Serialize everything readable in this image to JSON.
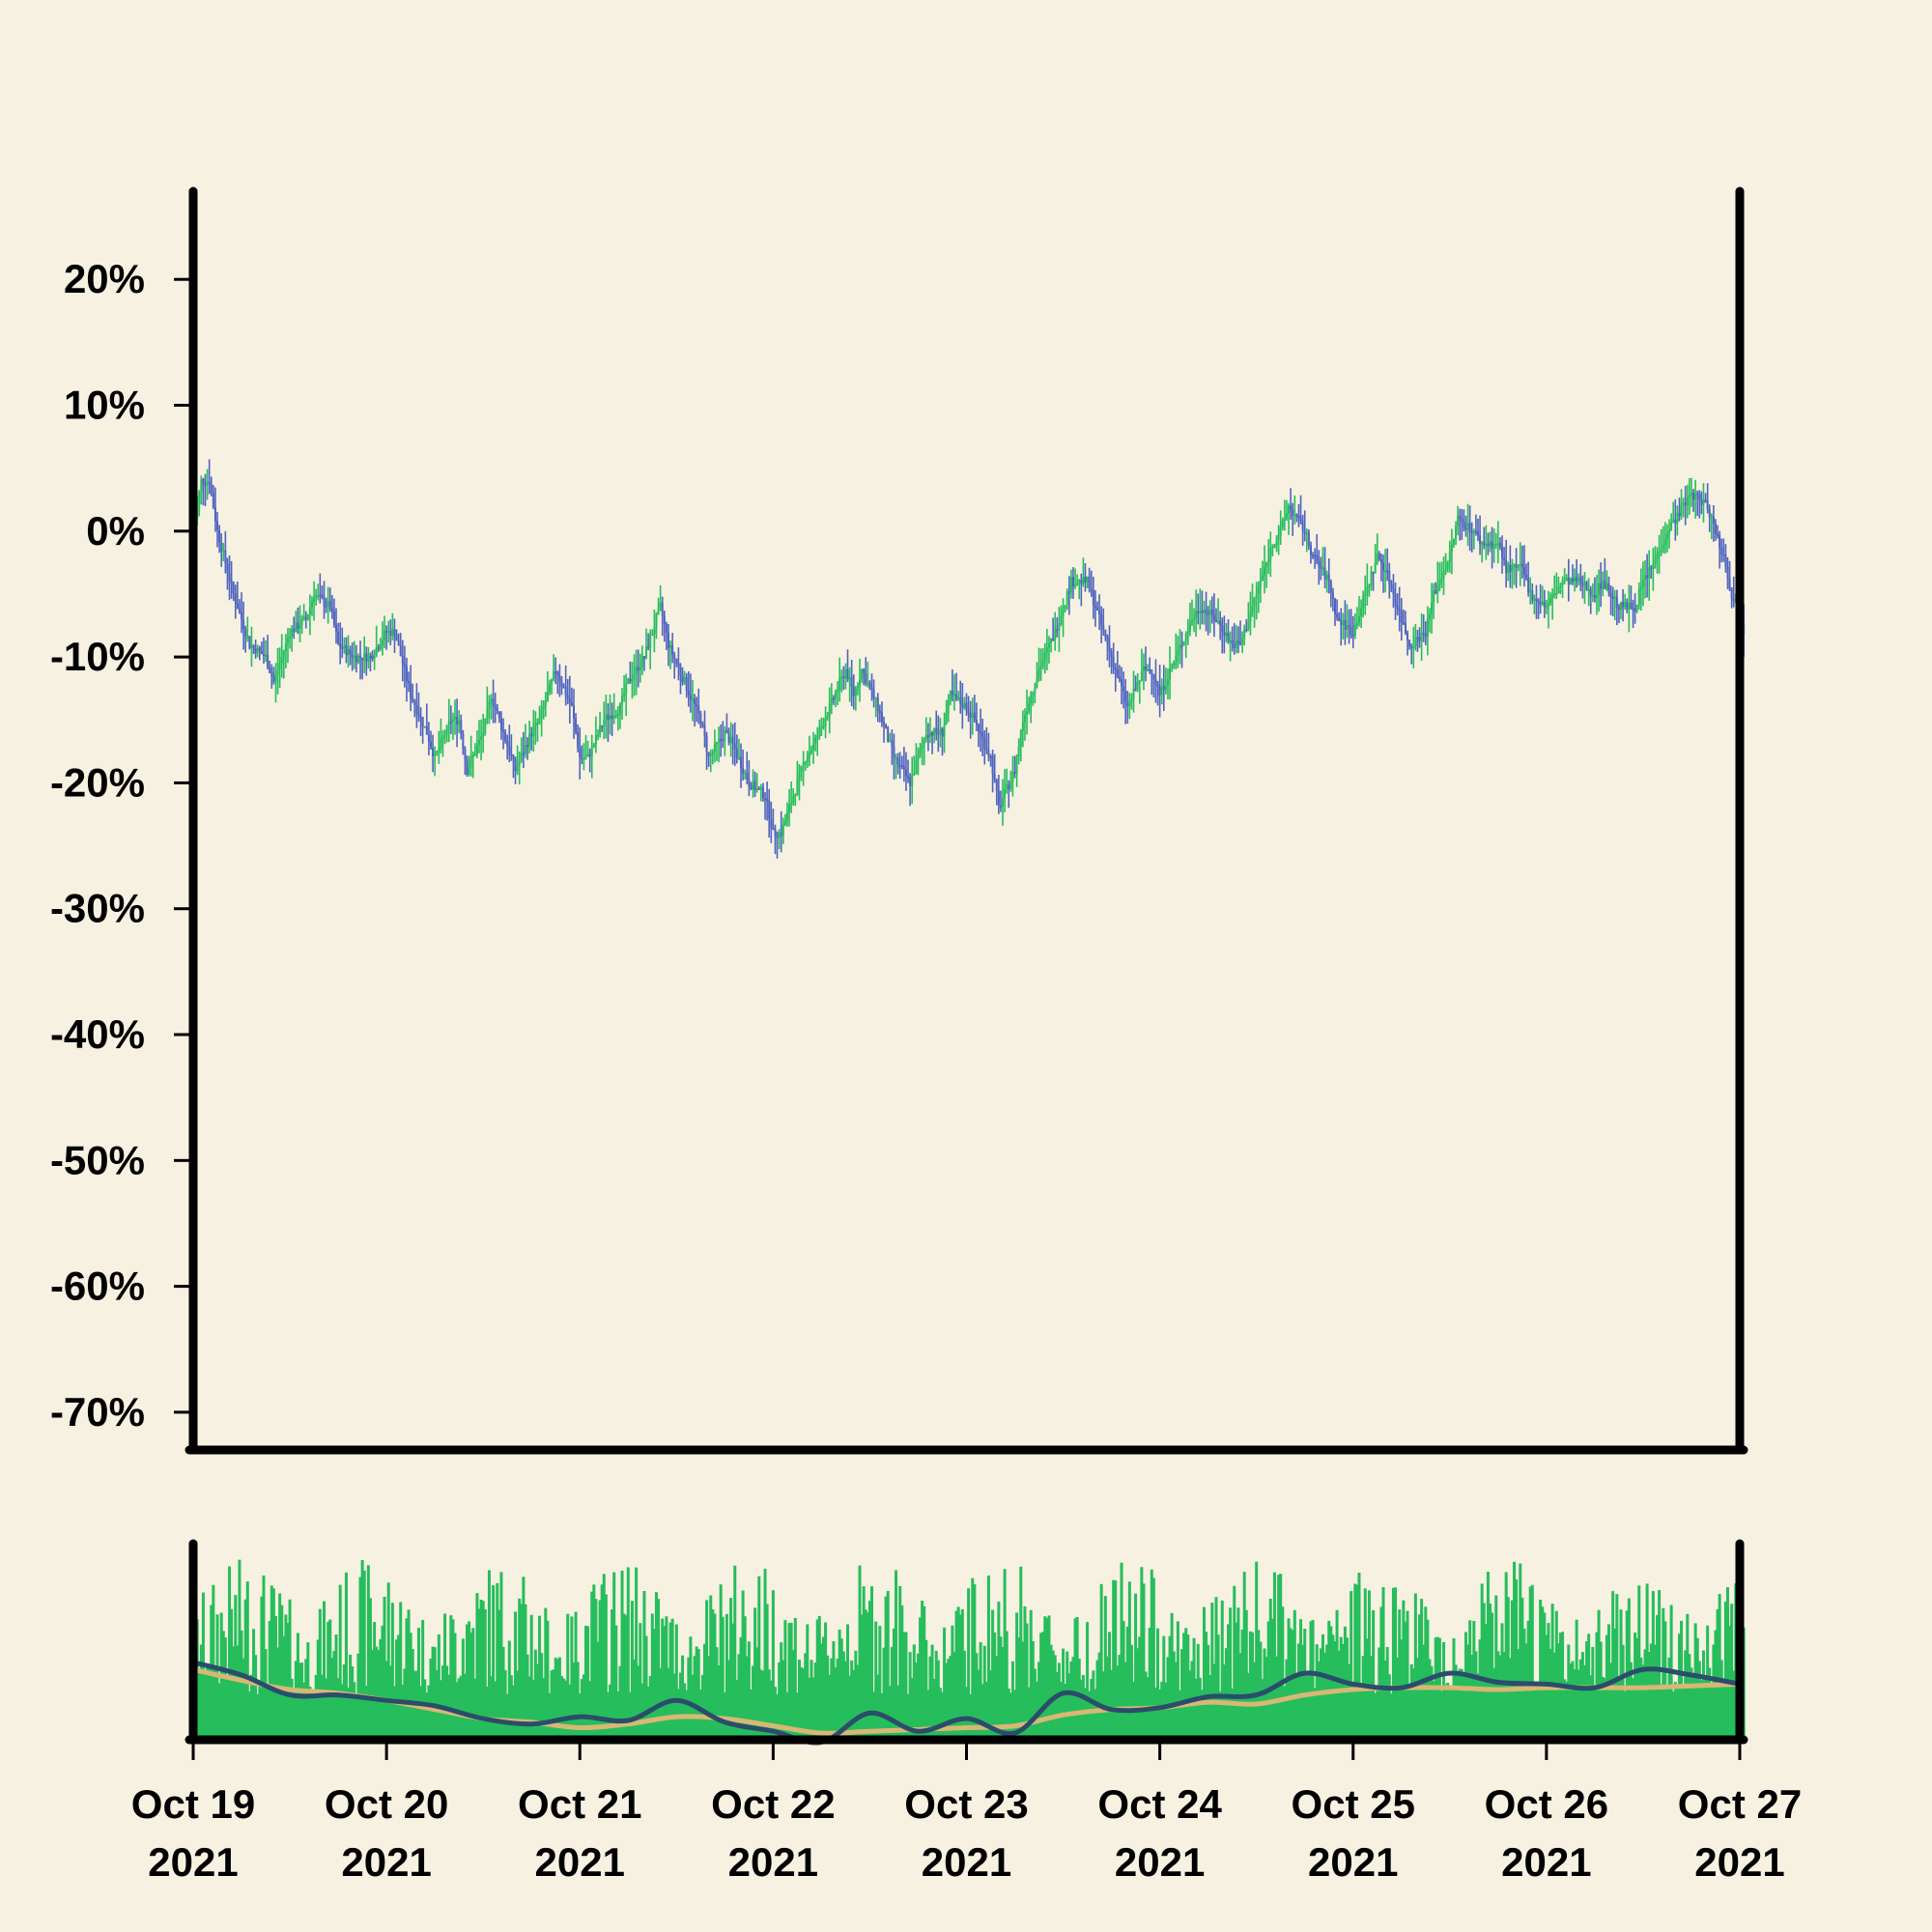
{
  "colors": {
    "background": "#f6f1e1",
    "up": "#26bd5c",
    "down": "#4f63bf",
    "volume": "#26bd5c",
    "ma_fast": "#2b4d6b",
    "ma_slow": "#d9b774",
    "axis": "#000000"
  },
  "chart_data": [
    {
      "type": "candlestick",
      "title": "",
      "xlabel": "",
      "ylabel": "",
      "ylim": [
        -73,
        27
      ],
      "y_unit": "%",
      "y_ticks": [
        {
          "value": 20,
          "label": "20%"
        },
        {
          "value": 10,
          "label": "10%"
        },
        {
          "value": 0,
          "label": "0%"
        },
        {
          "value": -10,
          "label": "-10%"
        },
        {
          "value": -20,
          "label": "-20%"
        },
        {
          "value": -30,
          "label": "-30%"
        },
        {
          "value": -40,
          "label": "-40%"
        },
        {
          "value": -50,
          "label": "-50%"
        },
        {
          "value": -60,
          "label": "-60%"
        },
        {
          "value": -70,
          "label": "-70%"
        }
      ],
      "xlim": [
        "2021-10-19",
        "2021-10-27"
      ],
      "x_ticks": [
        {
          "date": "2021-10-19",
          "line1": "Oct 19",
          "line2": "2021"
        },
        {
          "date": "2021-10-20",
          "line1": "Oct 20",
          "line2": "2021"
        },
        {
          "date": "2021-10-21",
          "line1": "Oct 21",
          "line2": "2021"
        },
        {
          "date": "2021-10-22",
          "line1": "Oct 22",
          "line2": "2021"
        },
        {
          "date": "2021-10-23",
          "line1": "Oct 23",
          "line2": "2021"
        },
        {
          "date": "2021-10-24",
          "line1": "Oct 24",
          "line2": "2021"
        },
        {
          "date": "2021-10-25",
          "line1": "Oct 25",
          "line2": "2021"
        },
        {
          "date": "2021-10-26",
          "line1": "Oct 26",
          "line2": "2021"
        },
        {
          "date": "2021-10-27",
          "line1": "Oct 27",
          "line2": "2021"
        }
      ],
      "close_path": [
        [
          "2021-10-19 00:00",
          0
        ],
        [
          "2021-10-19 01:00",
          4
        ],
        [
          "2021-10-19 02:00",
          4
        ],
        [
          "2021-10-19 03:00",
          0
        ],
        [
          "2021-10-19 05:00",
          -5
        ],
        [
          "2021-10-19 07:00",
          -9
        ],
        [
          "2021-10-19 09:00",
          -10
        ],
        [
          "2021-10-19 10:00",
          -12
        ],
        [
          "2021-10-19 12:00",
          -8
        ],
        [
          "2021-10-19 14:00",
          -7
        ],
        [
          "2021-10-19 15:00",
          -5
        ],
        [
          "2021-10-19 17:00",
          -6
        ],
        [
          "2021-10-19 18:00",
          -9
        ],
        [
          "2021-10-19 20:00",
          -10
        ],
        [
          "2021-10-19 22:00",
          -10
        ],
        [
          "2021-10-20 00:00",
          -8
        ],
        [
          "2021-10-20 01:00",
          -8
        ],
        [
          "2021-10-20 03:00",
          -13
        ],
        [
          "2021-10-20 05:00",
          -16
        ],
        [
          "2021-10-20 06:00",
          -18
        ],
        [
          "2021-10-20 08:00",
          -15
        ],
        [
          "2021-10-20 09:00",
          -15
        ],
        [
          "2021-10-20 10:00",
          -19
        ],
        [
          "2021-10-20 12:00",
          -16
        ],
        [
          "2021-10-20 13:00",
          -13
        ],
        [
          "2021-10-20 15:00",
          -17
        ],
        [
          "2021-10-20 16:00",
          -19
        ],
        [
          "2021-10-20 18:00",
          -16
        ],
        [
          "2021-10-20 19:00",
          -15
        ],
        [
          "2021-10-20 21:00",
          -11
        ],
        [
          "2021-10-20 23:00",
          -14
        ],
        [
          "2021-10-21 00:00",
          -18
        ],
        [
          "2021-10-21 01:00",
          -18
        ],
        [
          "2021-10-21 03:00",
          -15
        ],
        [
          "2021-10-21 05:00",
          -14
        ],
        [
          "2021-10-21 06:00",
          -12
        ],
        [
          "2021-10-21 08:00",
          -10
        ],
        [
          "2021-10-21 09:00",
          -8
        ],
        [
          "2021-10-21 10:00",
          -6
        ],
        [
          "2021-10-21 11:00",
          -9
        ],
        [
          "2021-10-21 13:00",
          -12
        ],
        [
          "2021-10-21 15:00",
          -15
        ],
        [
          "2021-10-21 16:00",
          -18
        ],
        [
          "2021-10-21 18:00",
          -16
        ],
        [
          "2021-10-21 19:00",
          -17
        ],
        [
          "2021-10-21 21:00",
          -20
        ],
        [
          "2021-10-21 23:00",
          -21
        ],
        [
          "2021-10-22 00:00",
          -24
        ],
        [
          "2021-10-22 01:00",
          -24
        ],
        [
          "2021-10-22 03:00",
          -20
        ],
        [
          "2021-10-22 04:00",
          -18
        ],
        [
          "2021-10-22 05:00",
          -17
        ],
        [
          "2021-10-22 07:00",
          -14
        ],
        [
          "2021-10-22 09:00",
          -11
        ],
        [
          "2021-10-22 10:00",
          -13
        ],
        [
          "2021-10-22 11:00",
          -11
        ],
        [
          "2021-10-22 13:00",
          -14
        ],
        [
          "2021-10-22 15:00",
          -18
        ],
        [
          "2021-10-22 17:00",
          -20
        ],
        [
          "2021-10-22 18:00",
          -18
        ],
        [
          "2021-10-22 19:00",
          -16
        ],
        [
          "2021-10-22 21:00",
          -16
        ],
        [
          "2021-10-22 22:00",
          -13
        ],
        [
          "2021-10-23 00:00",
          -14
        ],
        [
          "2021-10-23 01:00",
          -15
        ],
        [
          "2021-10-23 03:00",
          -18
        ],
        [
          "2021-10-23 04:00",
          -22
        ],
        [
          "2021-10-23 06:00",
          -19
        ],
        [
          "2021-10-23 07:00",
          -15
        ],
        [
          "2021-10-23 09:00",
          -11
        ],
        [
          "2021-10-23 11:00",
          -8
        ],
        [
          "2021-10-23 12:00",
          -6
        ],
        [
          "2021-10-23 13:00",
          -4
        ],
        [
          "2021-10-23 15:00",
          -4
        ],
        [
          "2021-10-23 16:00",
          -6
        ],
        [
          "2021-10-23 17:00",
          -8
        ],
        [
          "2021-10-23 19:00",
          -12
        ],
        [
          "2021-10-23 20:00",
          -14
        ],
        [
          "2021-10-23 22:00",
          -11
        ],
        [
          "2021-10-23 23:00",
          -11
        ],
        [
          "2021-10-24 00:00",
          -13
        ],
        [
          "2021-10-24 02:00",
          -10
        ],
        [
          "2021-10-24 04:00",
          -7
        ],
        [
          "2021-10-24 05:00",
          -6
        ],
        [
          "2021-10-24 07:00",
          -7
        ],
        [
          "2021-10-24 09:00",
          -9
        ],
        [
          "2021-10-24 10:00",
          -9
        ],
        [
          "2021-10-24 12:00",
          -5
        ],
        [
          "2021-10-24 14:00",
          -1
        ],
        [
          "2021-10-24 15:00",
          0
        ],
        [
          "2021-10-24 16:00",
          2
        ],
        [
          "2021-10-24 18:00",
          0
        ],
        [
          "2021-10-24 19:00",
          -2
        ],
        [
          "2021-10-24 21:00",
          -4
        ],
        [
          "2021-10-24 22:00",
          -7
        ],
        [
          "2021-10-25 00:00",
          -8
        ],
        [
          "2021-10-25 01:00",
          -6
        ],
        [
          "2021-10-25 03:00",
          -2
        ],
        [
          "2021-10-25 04:00",
          -3
        ],
        [
          "2021-10-25 06:00",
          -7
        ],
        [
          "2021-10-25 07:00",
          -9
        ],
        [
          "2021-10-25 09:00",
          -8
        ],
        [
          "2021-10-25 10:00",
          -5
        ],
        [
          "2021-10-25 12:00",
          -2
        ],
        [
          "2021-10-25 13:00",
          1
        ],
        [
          "2021-10-25 15:00",
          0
        ],
        [
          "2021-10-25 16:00",
          -1
        ],
        [
          "2021-10-25 18:00",
          -1
        ],
        [
          "2021-10-25 19:00",
          -3
        ],
        [
          "2021-10-25 21:00",
          -3
        ],
        [
          "2021-10-25 22:00",
          -5
        ],
        [
          "2021-10-26 00:00",
          -6
        ],
        [
          "2021-10-26 02:00",
          -4
        ],
        [
          "2021-10-26 04:00",
          -4
        ],
        [
          "2021-10-26 06:00",
          -5
        ],
        [
          "2021-10-26 07:00",
          -4
        ],
        [
          "2021-10-26 09:00",
          -6
        ],
        [
          "2021-10-26 11:00",
          -6
        ],
        [
          "2021-10-26 12:00",
          -4
        ],
        [
          "2021-10-26 13:00",
          -3
        ],
        [
          "2021-10-26 15:00",
          0
        ],
        [
          "2021-10-26 17:00",
          2
        ],
        [
          "2021-10-26 18:00",
          3
        ],
        [
          "2021-10-26 20:00",
          2
        ],
        [
          "2021-10-26 21:00",
          0
        ],
        [
          "2021-10-26 22:00",
          -2
        ],
        [
          "2021-10-26 23:00",
          -5
        ],
        [
          "2021-10-27 00:00",
          -6
        ],
        [
          "2021-10-27 00:30",
          -8
        ]
      ]
    },
    {
      "type": "bar+line",
      "title": "",
      "xlabel": "",
      "ylabel": "",
      "y_ticks": [],
      "xlim": [
        "2021-10-19",
        "2021-10-27"
      ],
      "series": [
        {
          "kind": "bar",
          "values_note": "per-candle volume"
        },
        {
          "kind": "line",
          "values_key": "ma_fast"
        },
        {
          "kind": "line",
          "values_key": "ma_slow"
        }
      ],
      "ma_fast": [
        [
          "2021-10-19 00:00",
          0.4
        ],
        [
          "2021-10-19 06:00",
          0.33
        ],
        [
          "2021-10-19 12:00",
          0.22
        ],
        [
          "2021-10-19 18:00",
          0.22
        ],
        [
          "2021-10-20 00:00",
          0.19
        ],
        [
          "2021-10-20 06:00",
          0.16
        ],
        [
          "2021-10-20 12:00",
          0.09
        ],
        [
          "2021-10-20 18:00",
          0.06
        ],
        [
          "2021-10-21 00:00",
          0.1
        ],
        [
          "2021-10-21 06:00",
          0.08
        ],
        [
          "2021-10-21 12:00",
          0.19
        ],
        [
          "2021-10-21 18:00",
          0.07
        ],
        [
          "2021-10-22 00:00",
          0.02
        ],
        [
          "2021-10-22 06:00",
          -0.04
        ],
        [
          "2021-10-22 12:00",
          0.12
        ],
        [
          "2021-10-22 18:00",
          0.02
        ],
        [
          "2021-10-23 00:00",
          0.09
        ],
        [
          "2021-10-23 06:00",
          0.01
        ],
        [
          "2021-10-23 12:00",
          0.23
        ],
        [
          "2021-10-23 18:00",
          0.14
        ],
        [
          "2021-10-24 00:00",
          0.15
        ],
        [
          "2021-10-24 06:00",
          0.21
        ],
        [
          "2021-10-24 12:00",
          0.22
        ],
        [
          "2021-10-24 18:00",
          0.34
        ],
        [
          "2021-10-25 00:00",
          0.28
        ],
        [
          "2021-10-25 06:00",
          0.26
        ],
        [
          "2021-10-25 12:00",
          0.34
        ],
        [
          "2021-10-25 18:00",
          0.29
        ],
        [
          "2021-10-26 00:00",
          0.28
        ],
        [
          "2021-10-26 06:00",
          0.26
        ],
        [
          "2021-10-26 12:00",
          0.36
        ],
        [
          "2021-10-26 18:00",
          0.33
        ],
        [
          "2021-10-27 00:00",
          0.28
        ]
      ],
      "ma_slow": [
        [
          "2021-10-19 00:00",
          0.36
        ],
        [
          "2021-10-19 06:00",
          0.3
        ],
        [
          "2021-10-19 12:00",
          0.25
        ],
        [
          "2021-10-19 18:00",
          0.23
        ],
        [
          "2021-10-20 00:00",
          0.19
        ],
        [
          "2021-10-20 06:00",
          0.14
        ],
        [
          "2021-10-20 12:00",
          0.09
        ],
        [
          "2021-10-20 18:00",
          0.07
        ],
        [
          "2021-10-21 00:00",
          0.04
        ],
        [
          "2021-10-21 06:00",
          0.06
        ],
        [
          "2021-10-21 12:00",
          0.1
        ],
        [
          "2021-10-21 18:00",
          0.09
        ],
        [
          "2021-10-22 00:00",
          0.05
        ],
        [
          "2021-10-22 06:00",
          0.01
        ],
        [
          "2021-10-22 12:00",
          0.02
        ],
        [
          "2021-10-22 18:00",
          0.03
        ],
        [
          "2021-10-23 00:00",
          0.04
        ],
        [
          "2021-10-23 06:00",
          0.05
        ],
        [
          "2021-10-23 12:00",
          0.11
        ],
        [
          "2021-10-23 18:00",
          0.14
        ],
        [
          "2021-10-24 00:00",
          0.15
        ],
        [
          "2021-10-24 06:00",
          0.18
        ],
        [
          "2021-10-24 12:00",
          0.17
        ],
        [
          "2021-10-24 18:00",
          0.22
        ],
        [
          "2021-10-25 00:00",
          0.25
        ],
        [
          "2021-10-25 06:00",
          0.26
        ],
        [
          "2021-10-25 12:00",
          0.26
        ],
        [
          "2021-10-25 18:00",
          0.25
        ],
        [
          "2021-10-26 00:00",
          0.26
        ],
        [
          "2021-10-26 06:00",
          0.26
        ],
        [
          "2021-10-26 12:00",
          0.26
        ],
        [
          "2021-10-26 18:00",
          0.27
        ],
        [
          "2021-10-27 00:00",
          0.28
        ]
      ]
    }
  ]
}
